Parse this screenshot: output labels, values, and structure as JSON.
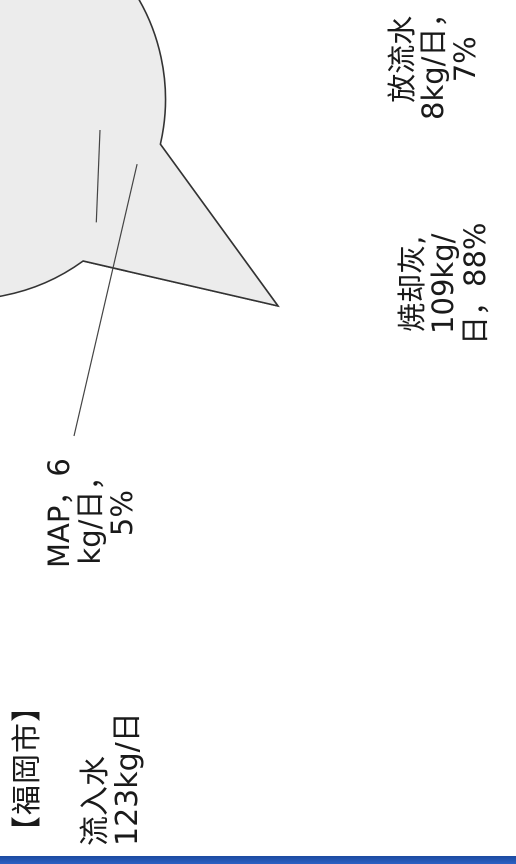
{
  "title": "【福岡市】",
  "inflow": {
    "label": "流入水",
    "value": "123kg/日"
  },
  "chart_data": {
    "type": "pie",
    "title": "",
    "unit": "kg/日",
    "slices": [
      {
        "name": "焼却灰",
        "value": 109,
        "percent": 88,
        "label": "焼却灰,\n109kg/\n日，88%",
        "color": "#ececec",
        "pattern": "solid"
      },
      {
        "name": "MAP",
        "value": 6,
        "percent": 5,
        "label": "MAP，6\nkg/日，\n5%",
        "color": "#ffffff",
        "pattern": "dots"
      },
      {
        "name": "放流水",
        "value": 8,
        "percent": 7,
        "label": "放流水\n8kg/日，\n7%",
        "color": "#a9aee8",
        "pattern": "solid"
      }
    ],
    "legend": "none",
    "grid": false
  },
  "colors": {
    "outline": "#333333",
    "bar": "#1f4fa8"
  }
}
